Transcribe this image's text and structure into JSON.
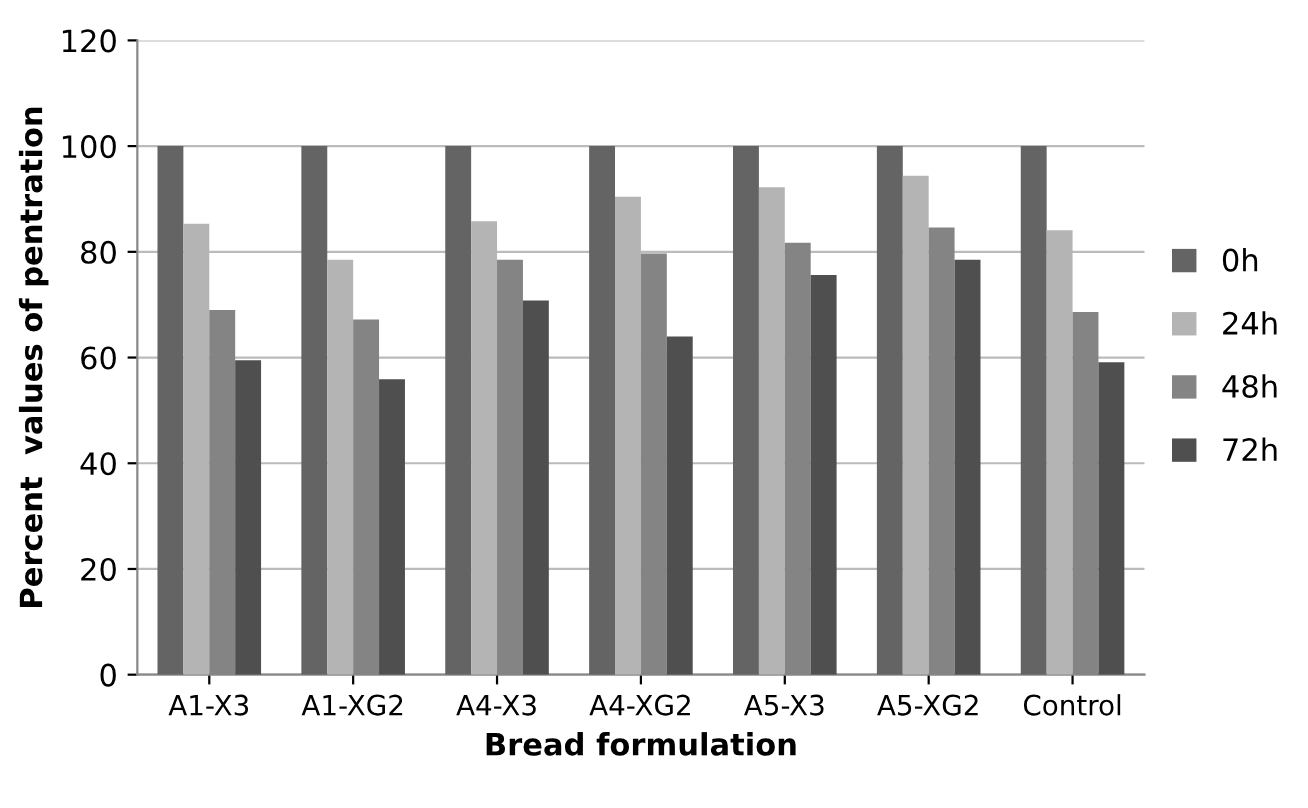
{
  "chart_data": {
    "type": "bar",
    "xlabel": "Bread formulation",
    "ylabel": "Percent  values of pentration",
    "categories": [
      "A1-X3",
      "A1-XG2",
      "A4-X3",
      "A4-XG2",
      "A5-X3",
      "A5-XG2",
      "Control"
    ],
    "series": [
      {
        "name": "0h",
        "color": "#646464",
        "values": [
          100,
          100,
          100,
          100,
          100,
          100,
          100
        ]
      },
      {
        "name": "24h",
        "color": "#b4b4b4",
        "values": [
          85.3,
          78.5,
          85.8,
          90.4,
          92.2,
          94.4,
          84.1
        ]
      },
      {
        "name": "48h",
        "color": "#848484",
        "values": [
          69,
          67.2,
          78.5,
          79.7,
          81.7,
          84.6,
          68.6
        ]
      },
      {
        "name": "72h",
        "color": "#4f4f4f",
        "values": [
          59.5,
          55.9,
          70.8,
          64,
          75.6,
          78.5,
          59.1
        ]
      }
    ],
    "ylim": [
      0,
      120
    ],
    "yticks": [
      0,
      20,
      40,
      60,
      80,
      100,
      120
    ],
    "grid": "y",
    "legend": "right"
  }
}
